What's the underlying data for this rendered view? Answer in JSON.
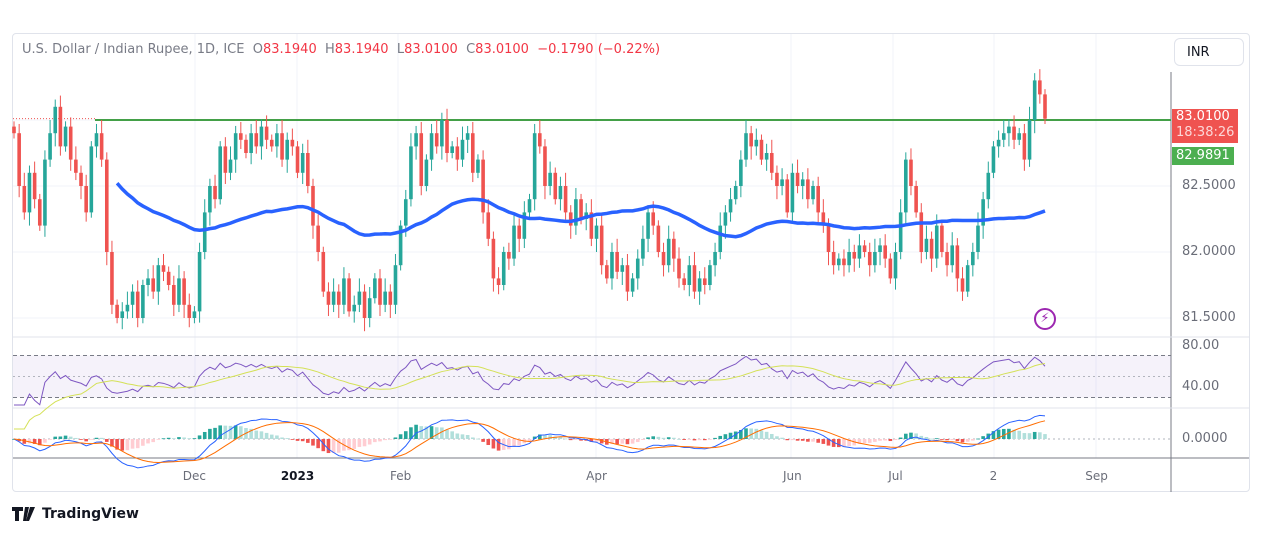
{
  "header": {
    "symbol": "U.S. Dollar / Indian Rupee, 1D, ICE",
    "o_label": "O",
    "open": "83.1940",
    "h_label": "H",
    "high": "83.1940",
    "l_label": "L",
    "low": "83.0100",
    "c_label": "C",
    "close": "83.0100",
    "change": "−0.1790 (−0.22%)"
  },
  "currency_button": "INR",
  "price_tags": {
    "last": "83.0100",
    "countdown": "18:38:26",
    "ma": "82.9891"
  },
  "colors": {
    "up": "#26a69a",
    "down": "#ef5350",
    "ma": "#2962ff",
    "rsi": "#7e57c2",
    "rsi_ma": "#d4e157",
    "macd": "#2962ff",
    "signal": "#ff6d00",
    "level": "#43a047"
  },
  "branding": "TradingView",
  "chart_data": {
    "type": "candlestick",
    "title": "U.S. Dollar / Indian Rupee, 1D, ICE",
    "y_ticks": [
      "82.5000",
      "82.0000",
      "81.5000"
    ],
    "y_tick_values": [
      82.5,
      82.0,
      81.5
    ],
    "ylim": [
      81.35,
      83.55
    ],
    "x_ticks": [
      {
        "label": "Dec",
        "index": 35,
        "bold": false
      },
      {
        "label": "2023",
        "index": 55,
        "bold": true
      },
      {
        "label": "Feb",
        "index": 75,
        "bold": false
      },
      {
        "label": "Apr",
        "index": 113,
        "bold": false
      },
      {
        "label": "Jun",
        "index": 151,
        "bold": false
      },
      {
        "label": "Jul",
        "index": 171,
        "bold": false
      },
      {
        "label": "2",
        "index": 190,
        "bold": false
      },
      {
        "label": "Sep",
        "index": 210,
        "bold": false
      }
    ],
    "resistance_level": 83.0,
    "ma_period": 50,
    "rsi": {
      "period": 14,
      "ticks": [
        "80.00",
        "40.00"
      ],
      "tick_values": [
        80,
        40
      ],
      "bands": [
        70,
        30
      ]
    },
    "macd": {
      "ticks": [
        "0.0000"
      ]
    },
    "closes": [
      82.9,
      82.5,
      82.3,
      82.6,
      82.4,
      82.2,
      82.7,
      82.9,
      83.1,
      82.8,
      82.95,
      82.7,
      82.6,
      82.5,
      82.3,
      82.8,
      82.9,
      82.7,
      82.0,
      81.6,
      81.5,
      81.55,
      81.6,
      81.7,
      81.5,
      81.75,
      81.8,
      81.7,
      81.9,
      81.85,
      81.75,
      81.6,
      81.8,
      81.6,
      81.5,
      81.55,
      82.0,
      82.3,
      82.5,
      82.4,
      82.8,
      82.6,
      82.7,
      82.9,
      82.85,
      82.75,
      82.9,
      82.8,
      82.95,
      82.85,
      82.8,
      82.9,
      82.7,
      82.85,
      82.8,
      82.6,
      82.75,
      82.5,
      82.2,
      82.0,
      81.7,
      81.6,
      81.7,
      81.6,
      81.8,
      81.55,
      81.6,
      81.7,
      81.5,
      81.65,
      81.8,
      81.6,
      81.7,
      81.6,
      81.9,
      82.2,
      82.4,
      82.8,
      82.9,
      82.5,
      82.7,
      82.9,
      82.8,
      83.0,
      82.75,
      82.8,
      82.7,
      82.85,
      82.9,
      82.6,
      82.7,
      82.3,
      82.1,
      81.8,
      81.75,
      82.0,
      81.95,
      82.2,
      82.1,
      82.3,
      82.4,
      82.9,
      82.8,
      82.5,
      82.6,
      82.4,
      82.5,
      82.3,
      82.2,
      82.4,
      82.25,
      82.3,
      82.1,
      82.2,
      81.9,
      81.8,
      82.0,
      81.85,
      81.9,
      81.7,
      81.8,
      81.95,
      82.1,
      82.3,
      82.2,
      82.0,
      81.9,
      82.1,
      81.95,
      81.8,
      81.75,
      81.9,
      81.7,
      81.8,
      81.75,
      81.9,
      82.0,
      82.2,
      82.3,
      82.4,
      82.5,
      82.7,
      82.9,
      82.8,
      82.85,
      82.7,
      82.75,
      82.6,
      82.5,
      82.55,
      82.3,
      82.6,
      82.5,
      82.55,
      82.4,
      82.5,
      82.3,
      82.2,
      82.0,
      81.9,
      81.95,
      81.9,
      82.0,
      81.95,
      82.05,
      82.0,
      81.9,
      82.0,
      82.05,
      81.95,
      81.8,
      82.0,
      82.3,
      82.7,
      82.5,
      82.3,
      82.0,
      82.1,
      81.95,
      82.2,
      82.0,
      81.9,
      82.05,
      81.8,
      81.7,
      81.9,
      82.0,
      82.2,
      82.4,
      82.6,
      82.8,
      82.85,
      82.9,
      82.95,
      82.85,
      82.9,
      82.7,
      83.0,
      83.3,
      83.194,
      83.01
    ]
  }
}
